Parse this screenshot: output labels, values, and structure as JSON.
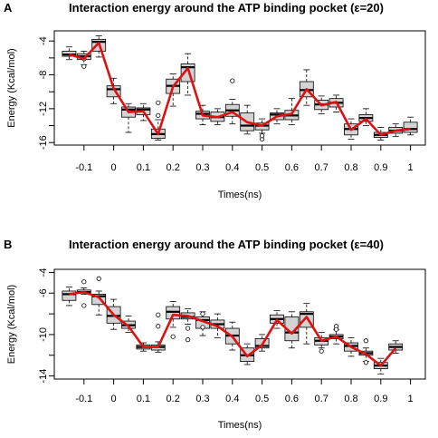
{
  "chart_data": [
    {
      "type": "box",
      "panel": "A",
      "title": "Interaction energy around the ATP binding pocket (ε=20)",
      "xlabel": "Times(ns)",
      "ylabel": "Energy (Kcal/mol)",
      "xlim": [
        -0.2,
        1.05
      ],
      "ylim": [
        -16.3,
        -2.8
      ],
      "xticks": [
        -0.1,
        0,
        0.1,
        0.2,
        0.3,
        0.4,
        0.5,
        0.6,
        0.7,
        0.8,
        0.9,
        1
      ],
      "xtick_labels": [
        "-0.1",
        "0",
        "0.1",
        "0.2",
        "0.3",
        "0.4",
        "0.5",
        "0.6",
        "0.7",
        "0.8",
        "0.9",
        "1"
      ],
      "yticks": [
        -4,
        -8,
        -12,
        -16
      ],
      "yticks_minor": [
        -6,
        -10,
        -14
      ],
      "ytick_labels": [
        "-4",
        "-8",
        "-12",
        "-16"
      ],
      "mean_color": "#dd1111",
      "box_fill": "#d3d3d3",
      "boxes": [
        {
          "x": -0.15,
          "q1": -5.8,
          "med": -5.6,
          "q3": -5.2,
          "lo": -6.2,
          "hi": -4.7,
          "out": []
        },
        {
          "x": -0.1,
          "q1": -6.2,
          "med": -5.8,
          "q3": -5.5,
          "lo": -6.8,
          "hi": -5.2,
          "out": [
            -7.0,
            -6.1
          ]
        },
        {
          "x": -0.05,
          "q1": -5.2,
          "med": -4.1,
          "q3": -3.8,
          "lo": -5.9,
          "hi": -3.4,
          "out": []
        },
        {
          "x": 0.0,
          "q1": -10.6,
          "med": -9.7,
          "q3": -9.3,
          "lo": -11.4,
          "hi": -8.4,
          "out": []
        },
        {
          "x": 0.05,
          "q1": -13.0,
          "med": -12.1,
          "q3": -11.8,
          "lo": -14.8,
          "hi": -11.4,
          "out": []
        },
        {
          "x": 0.1,
          "q1": -12.7,
          "med": -12.1,
          "q3": -11.9,
          "lo": -13.4,
          "hi": -11.4,
          "out": []
        },
        {
          "x": 0.15,
          "q1": -15.5,
          "med": -15.0,
          "q3": -14.4,
          "lo": -15.7,
          "hi": -13.3,
          "out": [
            -11.3,
            -12.8
          ]
        },
        {
          "x": 0.2,
          "q1": -10.2,
          "med": -9.3,
          "q3": -8.5,
          "lo": -11.7,
          "hi": -7.9,
          "out": []
        },
        {
          "x": 0.25,
          "q1": -8.8,
          "med": -7.1,
          "q3": -6.7,
          "lo": -10.4,
          "hi": -5.5,
          "out": []
        },
        {
          "x": 0.3,
          "q1": -13.2,
          "med": -12.6,
          "q3": -12.3,
          "lo": -13.9,
          "hi": -11.6,
          "out": []
        },
        {
          "x": 0.35,
          "q1": -13.5,
          "med": -13.0,
          "q3": -12.4,
          "lo": -13.9,
          "hi": -12.0,
          "out": []
        },
        {
          "x": 0.4,
          "q1": -12.9,
          "med": -12.2,
          "q3": -11.5,
          "lo": -13.8,
          "hi": -10.9,
          "out": [
            -8.7
          ]
        },
        {
          "x": 0.45,
          "q1": -14.6,
          "med": -14.0,
          "q3": -12.5,
          "lo": -15.0,
          "hi": -11.6,
          "out": []
        },
        {
          "x": 0.5,
          "q1": -14.5,
          "med": -14.0,
          "q3": -13.7,
          "lo": -14.9,
          "hi": -13.2,
          "out": [
            -15.6,
            -15.2
          ]
        },
        {
          "x": 0.55,
          "q1": -13.3,
          "med": -12.7,
          "q3": -12.5,
          "lo": -13.8,
          "hi": -12.0,
          "out": []
        },
        {
          "x": 0.6,
          "q1": -13.3,
          "med": -12.8,
          "q3": -12.2,
          "lo": -13.9,
          "hi": -10.8,
          "out": []
        },
        {
          "x": 0.65,
          "q1": -10.6,
          "med": -9.8,
          "q3": -8.8,
          "lo": -11.6,
          "hi": -7.4,
          "out": []
        },
        {
          "x": 0.7,
          "q1": -12.1,
          "med": -11.5,
          "q3": -11.0,
          "lo": -12.6,
          "hi": -10.5,
          "out": []
        },
        {
          "x": 0.75,
          "q1": -11.8,
          "med": -11.3,
          "q3": -10.8,
          "lo": -12.4,
          "hi": -10.4,
          "out": []
        },
        {
          "x": 0.8,
          "q1": -15.1,
          "med": -14.4,
          "q3": -13.8,
          "lo": -15.6,
          "hi": -13.2,
          "out": []
        },
        {
          "x": 0.85,
          "q1": -13.5,
          "med": -13.1,
          "q3": -12.7,
          "lo": -14.0,
          "hi": -12.0,
          "out": []
        },
        {
          "x": 0.9,
          "q1": -15.4,
          "med": -15.1,
          "q3": -14.8,
          "lo": -15.7,
          "hi": -14.2,
          "out": []
        },
        {
          "x": 0.95,
          "q1": -14.9,
          "med": -14.6,
          "q3": -14.2,
          "lo": -15.3,
          "hi": -13.8,
          "out": []
        },
        {
          "x": 1.0,
          "q1": -14.8,
          "med": -14.4,
          "q3": -13.6,
          "lo": -15.1,
          "hi": -13.0,
          "out": []
        }
      ],
      "mean_line": [
        -5.6,
        -6.1,
        -4.2,
        -9.6,
        -12.4,
        -12.3,
        -15.0,
        -9.4,
        -7.2,
        -12.8,
        -13.0,
        -12.4,
        -13.6,
        -14.0,
        -12.9,
        -12.6,
        -9.7,
        -11.6,
        -11.2,
        -14.5,
        -13.2,
        -15.1,
        -14.6,
        -14.4
      ]
    },
    {
      "type": "box",
      "panel": "B",
      "title": "Interaction energy around the ATP binding pocket (ε=40)",
      "xlabel": "Times(ns)",
      "ylabel": "Energy (Kcal/mol)",
      "xlim": [
        -0.2,
        1.05
      ],
      "ylim": [
        -14.3,
        -3.7
      ],
      "xticks": [
        -0.1,
        0,
        0.1,
        0.2,
        0.3,
        0.4,
        0.5,
        0.6,
        0.7,
        0.8,
        0.9,
        1
      ],
      "xtick_labels": [
        "-0.1",
        "0",
        "0.1",
        "0.2",
        "0.3",
        "0.4",
        "0.5",
        "0.6",
        "0.7",
        "0.8",
        "0.9",
        "1"
      ],
      "yticks": [
        -6,
        -10,
        -14
      ],
      "yticks_minor": [
        -4,
        -8,
        -12
      ],
      "ytick_labels": [
        "-4",
        "-6",
        "-10",
        "-14"
      ],
      "ytick_label_values": [
        -4,
        -6,
        -10,
        -14
      ],
      "mean_color": "#dd1111",
      "box_fill": "#d3d3d3",
      "boxes": [
        {
          "x": -0.15,
          "q1": -6.7,
          "med": -6.1,
          "q3": -5.8,
          "lo": -7.2,
          "hi": -5.4,
          "out": []
        },
        {
          "x": -0.1,
          "q1": -6.0,
          "med": -5.9,
          "q3": -5.7,
          "lo": -6.1,
          "hi": -5.5,
          "out": [
            -4.9,
            -7.2
          ]
        },
        {
          "x": -0.05,
          "q1": -7.1,
          "med": -6.3,
          "q3": -6.1,
          "lo": -8.1,
          "hi": -5.8,
          "out": [
            -4.6
          ]
        },
        {
          "x": 0.0,
          "q1": -8.9,
          "med": -8.2,
          "q3": -7.3,
          "lo": -9.5,
          "hi": -6.6,
          "out": []
        },
        {
          "x": 0.05,
          "q1": -9.4,
          "med": -9.1,
          "q3": -8.7,
          "lo": -9.8,
          "hi": -8.2,
          "out": []
        },
        {
          "x": 0.1,
          "q1": -11.4,
          "med": -11.2,
          "q3": -11.0,
          "lo": -11.6,
          "hi": -10.8,
          "out": []
        },
        {
          "x": 0.15,
          "q1": -11.5,
          "med": -11.2,
          "q3": -11.0,
          "lo": -11.7,
          "hi": -10.7,
          "out": [
            -8.1,
            -9.2
          ]
        },
        {
          "x": 0.2,
          "q1": -8.5,
          "med": -7.8,
          "q3": -7.3,
          "lo": -9.3,
          "hi": -6.8,
          "out": [
            -10.2
          ]
        },
        {
          "x": 0.25,
          "q1": -8.5,
          "med": -8.3,
          "q3": -7.9,
          "lo": -9.0,
          "hi": -7.5,
          "out": [
            -10.5,
            -9.4
          ]
        },
        {
          "x": 0.3,
          "q1": -9.4,
          "med": -8.6,
          "q3": -8.3,
          "lo": -10.1,
          "hi": -7.8,
          "out": [
            -8.0,
            -9.3
          ]
        },
        {
          "x": 0.35,
          "q1": -9.4,
          "med": -9.0,
          "q3": -8.6,
          "lo": -10.3,
          "hi": -8.0,
          "out": []
        },
        {
          "x": 0.4,
          "q1": -10.9,
          "med": -10.1,
          "q3": -9.4,
          "lo": -11.5,
          "hi": -8.8,
          "out": []
        },
        {
          "x": 0.45,
          "q1": -12.6,
          "med": -12.0,
          "q3": -11.3,
          "lo": -12.9,
          "hi": -10.9,
          "out": []
        },
        {
          "x": 0.5,
          "q1": -11.3,
          "med": -11.1,
          "q3": -10.4,
          "lo": -11.6,
          "hi": -10.0,
          "out": []
        },
        {
          "x": 0.55,
          "q1": -8.9,
          "med": -8.5,
          "q3": -8.1,
          "lo": -9.4,
          "hi": -7.7,
          "out": []
        },
        {
          "x": 0.6,
          "q1": -10.6,
          "med": -9.8,
          "q3": -8.3,
          "lo": -11.3,
          "hi": -7.8,
          "out": []
        },
        {
          "x": 0.65,
          "q1": -9.3,
          "med": -8.0,
          "q3": -7.8,
          "lo": -10.9,
          "hi": -7.0,
          "out": []
        },
        {
          "x": 0.7,
          "q1": -11.0,
          "med": -10.6,
          "q3": -10.3,
          "lo": -11.3,
          "hi": -9.8,
          "out": [
            -11.6
          ]
        },
        {
          "x": 0.75,
          "q1": -10.4,
          "med": -10.2,
          "q3": -10.0,
          "lo": -10.9,
          "hi": -9.5,
          "out": [
            -9.2,
            -9.5
          ]
        },
        {
          "x": 0.8,
          "q1": -11.6,
          "med": -11.1,
          "q3": -10.8,
          "lo": -12.1,
          "hi": -10.3,
          "out": []
        },
        {
          "x": 0.85,
          "q1": -12.0,
          "med": -11.8,
          "q3": -11.6,
          "lo": -12.6,
          "hi": -11.3,
          "out": [
            -10.6,
            -12.7
          ]
        },
        {
          "x": 0.9,
          "q1": -13.3,
          "med": -13.0,
          "q3": -12.7,
          "lo": -13.8,
          "hi": -12.3,
          "out": []
        },
        {
          "x": 0.95,
          "q1": -11.5,
          "med": -11.2,
          "q3": -10.9,
          "lo": -11.8,
          "hi": -10.6,
          "out": []
        }
      ],
      "mean_line": [
        -6.1,
        -5.9,
        -6.4,
        -8.1,
        -9.2,
        -11.2,
        -11.2,
        -8.1,
        -8.2,
        -8.7,
        -9.2,
        -10.2,
        -12.1,
        -11.0,
        -8.6,
        -9.9,
        -8.3,
        -10.6,
        -10.2,
        -11.2,
        -11.9,
        -13.0,
        -11.3
      ]
    }
  ]
}
